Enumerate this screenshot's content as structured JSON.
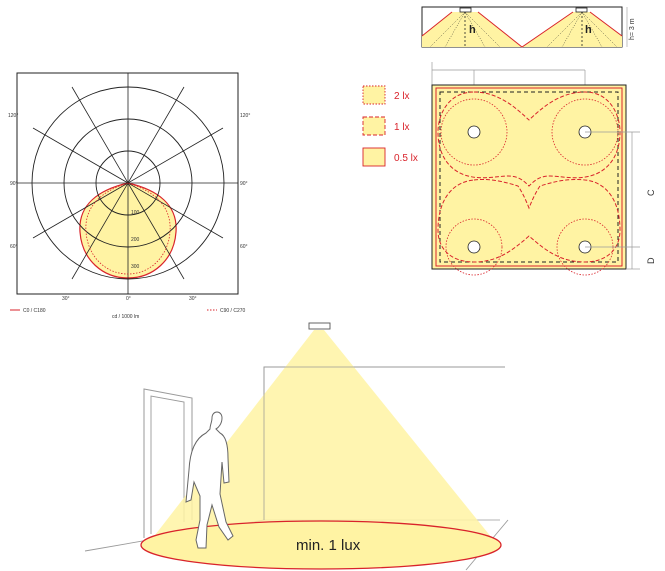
{
  "colors": {
    "fill": "#fff3a3",
    "red": "#d9232b",
    "line": "#222222",
    "grey": "#9a9a9a"
  },
  "polar": {
    "angles_side": [
      "120°",
      "90°",
      "60°"
    ],
    "angles_bottom": [
      "30°",
      "0°",
      "30°"
    ],
    "radial_labels": [
      "100",
      "200",
      "300"
    ],
    "unit": "cd / 1000 lm",
    "legend_c0": "C0 / C180",
    "legend_c90": "C90 / C270"
  },
  "section": {
    "h_label": "h",
    "height_label": "h= 3 m"
  },
  "legend": [
    {
      "label": "2 lx",
      "style": "dotted"
    },
    {
      "label": "1 lx",
      "style": "dashed"
    },
    {
      "label": "0.5 lx",
      "style": "solid"
    }
  ],
  "plan": {
    "dim_c": "C",
    "dim_d": "D"
  },
  "scene": {
    "min_lux": "min. 1 lux"
  }
}
